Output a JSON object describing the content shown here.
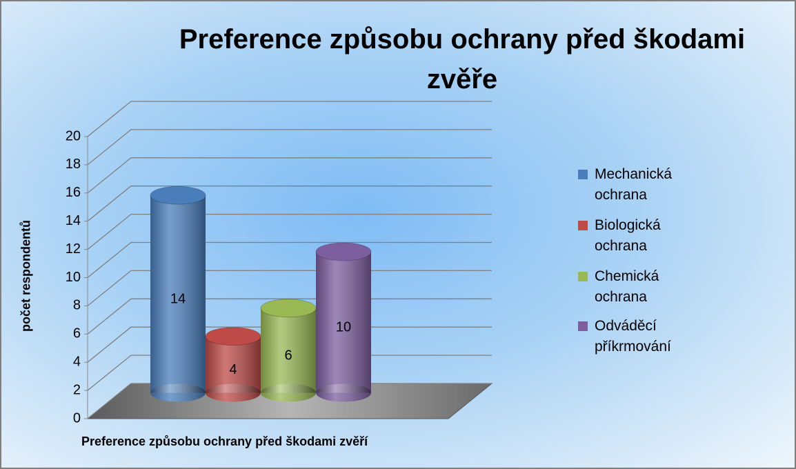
{
  "chart_data": {
    "type": "bar3d",
    "title": "Preference způsobu ochrany před škodami zvěře",
    "x_label": "Preference způsobu ochrany před škodami zvěří",
    "y_label": "počet respondentů",
    "categories": [
      null
    ],
    "series": [
      {
        "name": "Mechanická ochrana",
        "color": "#4a7ebb",
        "values": [
          14
        ]
      },
      {
        "name": "Biologická ochrana",
        "color": "#be4b48",
        "values": [
          4
        ]
      },
      {
        "name": "Chemická ochrana",
        "color": "#98b954",
        "values": [
          6
        ]
      },
      {
        "name": "Odváděcí příkrmování",
        "color": "#7d5fa0",
        "values": [
          10
        ]
      }
    ],
    "ylim": [
      0,
      20
    ],
    "yticks": [
      0,
      2,
      4,
      6,
      8,
      10,
      12,
      14,
      16,
      18,
      20
    ],
    "grid": true,
    "legend": "right"
  }
}
